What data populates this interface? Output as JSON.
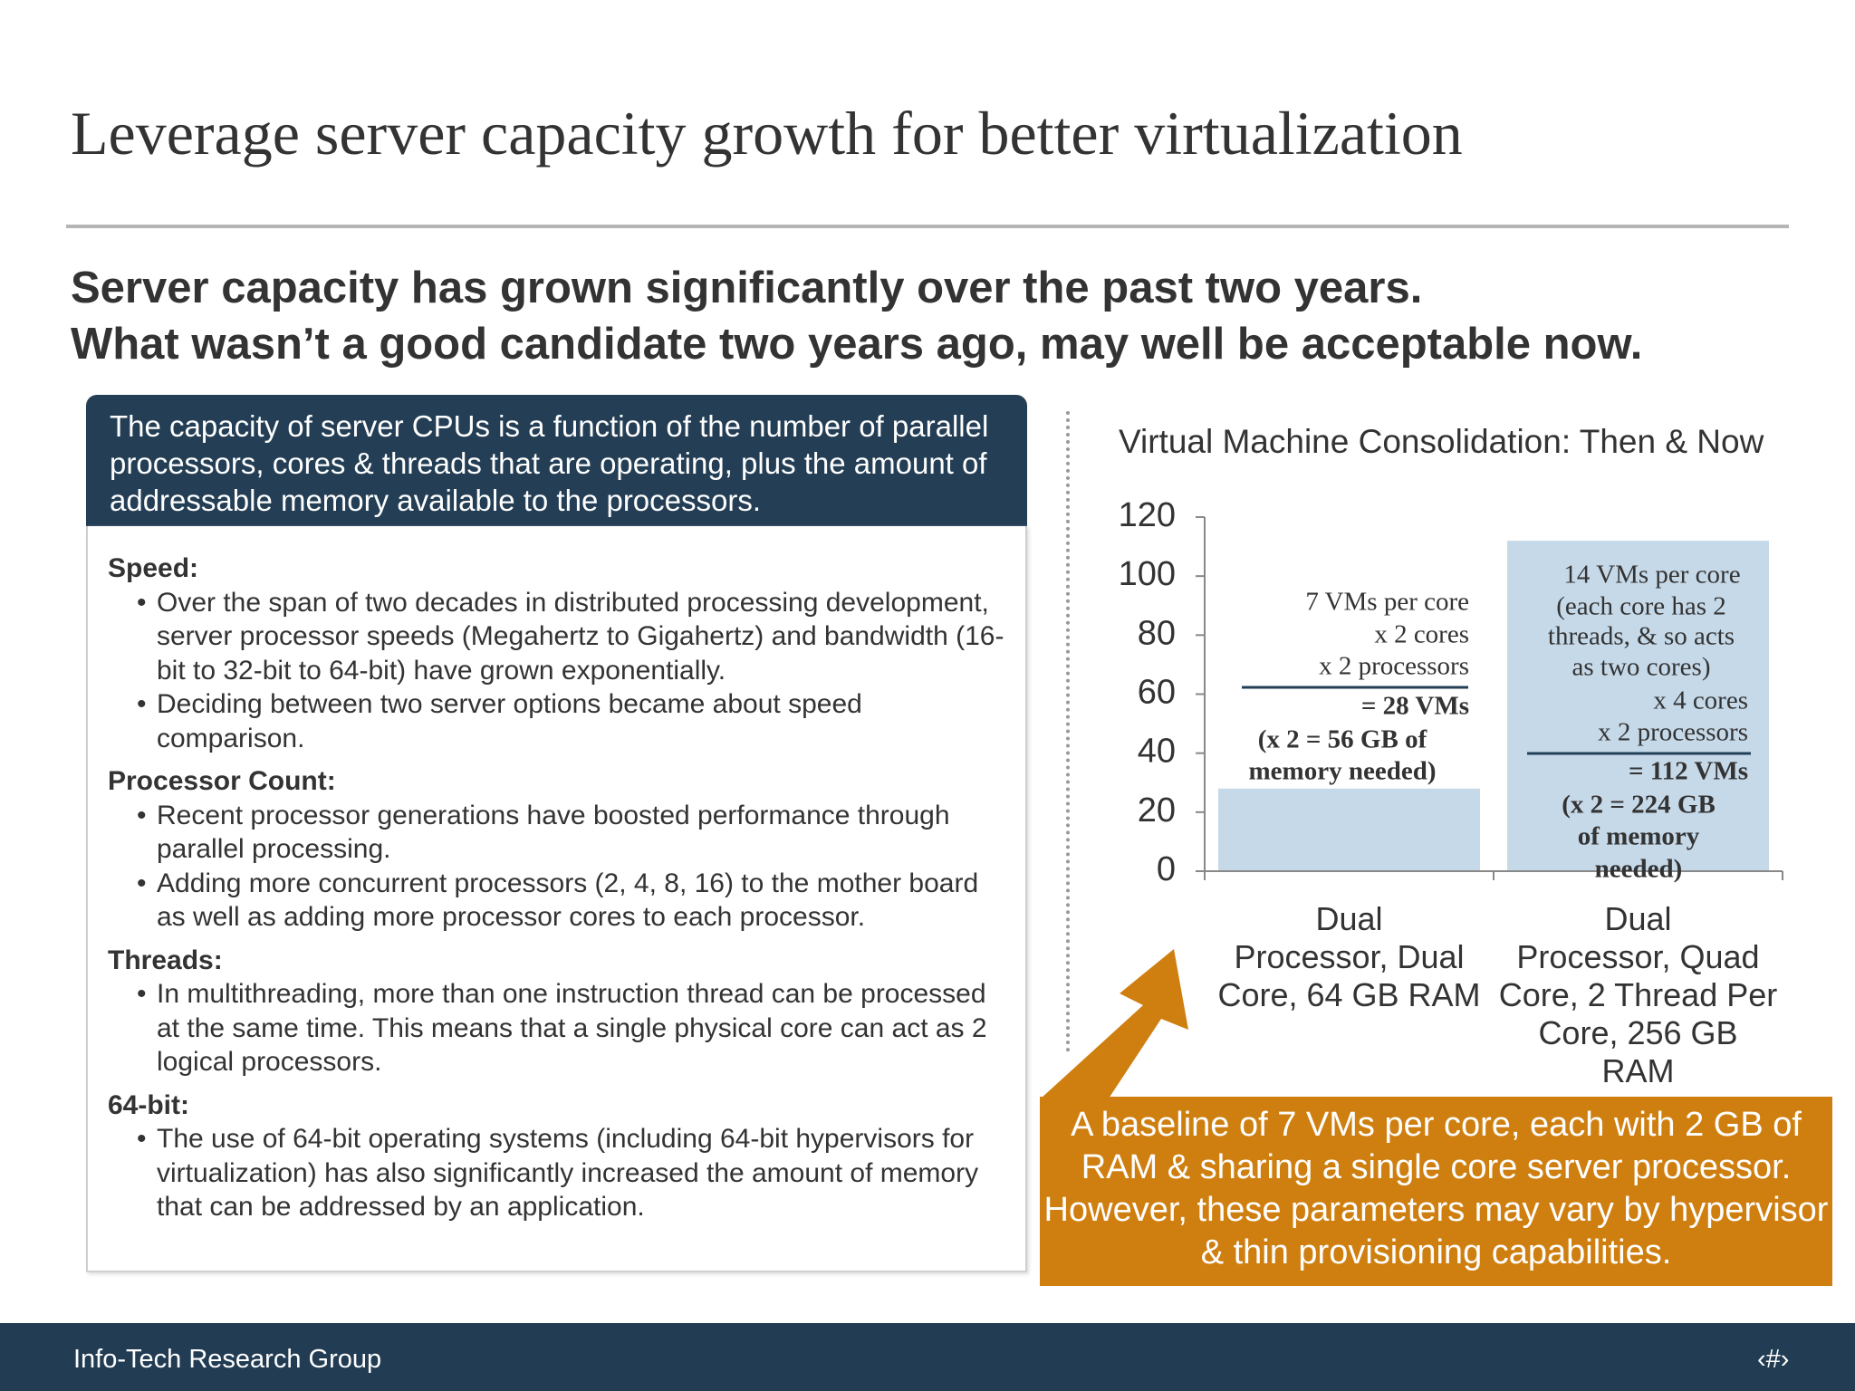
{
  "title": "Leverage server capacity growth for better virtualization",
  "subtitle": [
    "Server capacity has grown significantly over the past two years.",
    "What wasn’t a good candidate two years ago, may well be acceptable now."
  ],
  "info_box": {
    "header": "The capacity of server CPUs is a function of the number of parallel processors, cores & threads that are operating, plus the amount of addressable memory available to the processors.",
    "sections": [
      {
        "heading": "Speed:",
        "bullets": [
          "Over the span of two decades in distributed processing development, server processor speeds (Megahertz to Gigahertz) and bandwidth (16-bit to 32-bit to 64-bit) have grown exponentially.",
          "Deciding between two server options became about speed comparison."
        ]
      },
      {
        "heading": "Processor Count:",
        "bullets": [
          "Recent processor generations have boosted performance through parallel processing.",
          "Adding more concurrent processors (2, 4, 8, 16) to the mother board as well as adding more processor cores to each processor."
        ]
      },
      {
        "heading": "Threads:",
        "bullets": [
          "In multithreading, more than one instruction thread can be processed at the same time. This means that a single physical core can act as 2 logical processors."
        ]
      },
      {
        "heading": "64-bit:",
        "bullets": [
          "The use of 64-bit operating systems (including 64-bit hypervisors for virtualization) has also significantly increased the amount of memory that can be addressed by an application."
        ]
      }
    ]
  },
  "callout": "A baseline of 7 VMs per core, each with 2 GB of RAM & sharing a single core server processor. However, these parameters may vary by hypervisor & thin provisioning capabilities.",
  "footer": {
    "org": "Info-Tech Research Group",
    "page": "‹#›"
  },
  "chart_data": {
    "type": "bar",
    "title": "Virtual Machine Consolidation: Then & Now",
    "categories": [
      "Dual\nProcessor, Dual\nCore, 64 GB RAM",
      "Dual\nProcessor, Quad\nCore, 2 Thread Per\nCore, 256 GB\nRAM"
    ],
    "values": [
      28,
      112
    ],
    "color": "#c6d9e9",
    "ylim": [
      0,
      120
    ],
    "yticks": [
      0,
      20,
      40,
      60,
      80,
      100,
      120
    ],
    "annotations": [
      {
        "lines": [
          "7 VMs per core",
          "x 2 cores",
          "x 2 processors",
          "= 28 VMs",
          "(x 2 = 56 GB of",
          "memory needed)"
        ]
      },
      {
        "lines": [
          "14 VMs per core",
          "(each core has 2",
          "threads, & so acts",
          "as two cores)",
          "x 4 cores",
          "x 2 processors",
          "= 112 VMs",
          "(x 2 = 224 GB",
          "of memory",
          "needed)"
        ]
      }
    ]
  }
}
